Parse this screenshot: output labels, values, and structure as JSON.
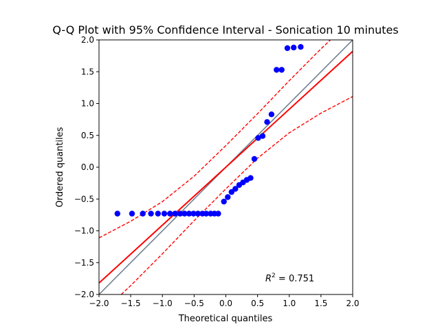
{
  "chart_data": {
    "type": "scatter",
    "title": "Q-Q Plot with 95% Confidence Interval - Sonication 10 minutes",
    "xlabel": "Theoretical quantiles",
    "ylabel": "Ordered quantiles",
    "xlim": [
      -2.0,
      2.0
    ],
    "ylim": [
      -2.0,
      2.0
    ],
    "xticks": [
      "−2.0",
      "−1.5",
      "−1.0",
      "−0.5",
      "0.0",
      "0.5",
      "1.0",
      "1.5",
      "2.0"
    ],
    "yticks": [
      "−2.0",
      "−1.5",
      "−1.0",
      "−0.5",
      "0.0",
      "0.5",
      "1.0",
      "1.5",
      "2.0"
    ],
    "grid": false,
    "annotation": {
      "base": "R",
      "superscript": "2",
      "text": " = 0.751"
    },
    "colors": {
      "points": "#0000ff",
      "fit_line": "#ff0000",
      "ci_band": "#ff0000",
      "reference": "#708090"
    },
    "series": [
      {
        "kind": "points",
        "x": [
          -1.71,
          -1.48,
          -1.31,
          -1.18,
          -1.07,
          -0.97,
          -0.88,
          -0.8,
          -0.72,
          -0.65,
          -0.58,
          -0.51,
          -0.44,
          -0.37,
          -0.31,
          -0.24,
          -0.18,
          -0.12,
          -0.03,
          0.03,
          0.09,
          0.15,
          0.21,
          0.27,
          0.33,
          0.39,
          0.45,
          0.51,
          0.58,
          0.65,
          0.72,
          0.8,
          0.88,
          0.97,
          1.07,
          1.18,
          1.31,
          1.48
        ],
        "y": [
          -0.73,
          -0.73,
          -0.73,
          -0.73,
          -0.73,
          -0.73,
          -0.73,
          -0.73,
          -0.73,
          -0.73,
          -0.73,
          -0.73,
          -0.73,
          -0.73,
          -0.73,
          -0.73,
          -0.73,
          -0.73,
          -0.54,
          -0.47,
          -0.39,
          -0.34,
          -0.28,
          -0.24,
          -0.2,
          -0.17,
          0.13,
          0.46,
          0.49,
          0.71,
          0.83,
          1.53,
          1.53,
          1.87,
          1.88,
          1.89,
          null,
          null
        ]
      },
      {
        "kind": "reference",
        "x": [
          -2.0,
          2.0
        ],
        "y": [
          -2.0,
          2.0
        ]
      },
      {
        "kind": "fit",
        "x": [
          -2.0,
          2.0
        ],
        "y": [
          -1.82,
          1.82
        ]
      },
      {
        "kind": "ci_upper",
        "x": [
          -2.0,
          -1.5,
          -1.0,
          -0.5,
          0.0,
          0.5,
          1.0,
          1.5,
          1.65
        ],
        "y": [
          -1.11,
          -0.85,
          -0.54,
          -0.14,
          0.34,
          0.84,
          1.36,
          1.86,
          2.0
        ]
      },
      {
        "kind": "ci_lower",
        "x": [
          -1.65,
          -1.5,
          -1.0,
          -0.5,
          0.0,
          0.5,
          1.0,
          1.5,
          2.0
        ],
        "y": [
          -2.0,
          -1.86,
          -1.36,
          -0.84,
          -0.34,
          0.14,
          0.54,
          0.85,
          1.11
        ]
      }
    ]
  }
}
